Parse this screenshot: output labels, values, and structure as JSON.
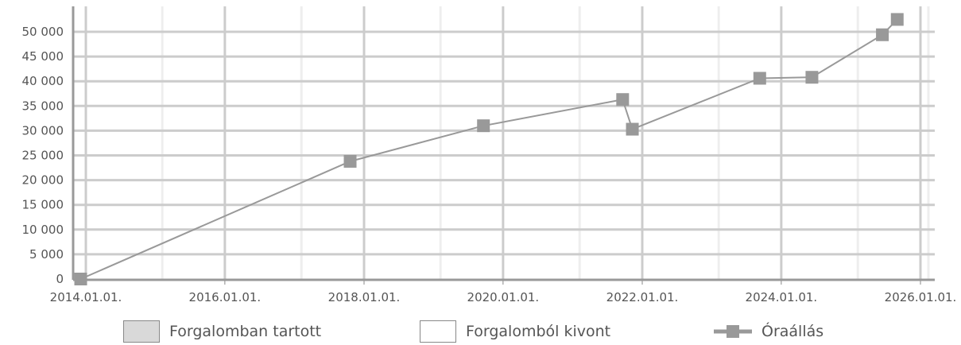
{
  "chart_data": {
    "type": "line",
    "x_axis": {
      "type": "date",
      "min": "2014-01-01",
      "max": "2026-02-10",
      "tick_labels": [
        "2014.01.01.",
        "2016.01.01.",
        "2018.01.01.",
        "2020.01.01.",
        "2022.01.01.",
        "2024.01.01.",
        "2026.01.01."
      ],
      "tick_dates": [
        "2014-01-01",
        "2016-01-01",
        "2018-01-01",
        "2020-01-01",
        "2022-01-01",
        "2024-01-01",
        "2026-01-01"
      ]
    },
    "y_axis": {
      "min": 0,
      "max": 55000,
      "tick_values": [
        0,
        5000,
        10000,
        15000,
        20000,
        25000,
        30000,
        35000,
        40000,
        45000,
        50000
      ],
      "tick_labels": [
        "0",
        "5 000",
        "10 000",
        "15 000",
        "20 000",
        "25 000",
        "30 000",
        "35 000",
        "40 000",
        "45 000",
        "50 000"
      ]
    },
    "grid": true,
    "series": [
      {
        "name": "Óraállás",
        "color": "#999999",
        "marker": "square",
        "points": [
          {
            "x": "2013-12-05",
            "y": 0
          },
          {
            "x": "2017-10-20",
            "y": 23800
          },
          {
            "x": "2019-09-20",
            "y": 31000
          },
          {
            "x": "2021-09-20",
            "y": 36300
          },
          {
            "x": "2021-11-10",
            "y": 30300
          },
          {
            "x": "2023-09-10",
            "y": 40600
          },
          {
            "x": "2024-06-10",
            "y": 40800
          },
          {
            "x": "2025-06-15",
            "y": 49400
          },
          {
            "x": "2025-09-01",
            "y": 52500
          }
        ]
      }
    ],
    "legend": {
      "position": "bottom",
      "items": [
        {
          "label": "Forgalomban tartott",
          "swatch": "#d9d9d9",
          "kind": "box"
        },
        {
          "label": "Forgalomból kivont",
          "swatch": "#ffffff",
          "kind": "box"
        },
        {
          "label": "Óraállás",
          "swatch": "#999999",
          "kind": "line-marker"
        }
      ]
    }
  }
}
